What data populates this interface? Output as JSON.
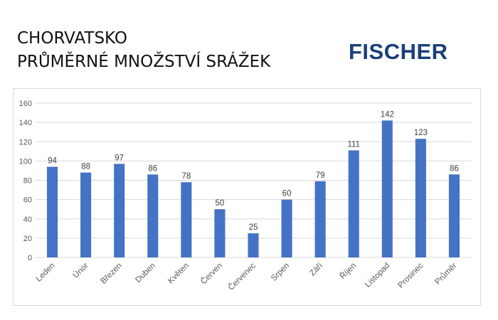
{
  "header": {
    "title_line1": "CHORVATSKO",
    "title_line2": "PRŮMĚRNÉ MNOŽSTVÍ SRÁŽEK",
    "logo_text": "FISCHER"
  },
  "colors": {
    "bar": "#4472c4",
    "logo": "#1a3f7a",
    "grid": "#d9d9d9"
  },
  "chart_data": {
    "type": "bar",
    "categories": [
      "Leden",
      "Únor",
      "Březen",
      "Duben",
      "Květen",
      "Červen",
      "Červenec",
      "Srpen",
      "Září",
      "Říjen",
      "Listopad",
      "Prosinec",
      "Průměr"
    ],
    "values": [
      94,
      88,
      97,
      86,
      78,
      50,
      25,
      60,
      79,
      111,
      142,
      123,
      86
    ],
    "title": "",
    "xlabel": "",
    "ylabel": "",
    "ylim": [
      0,
      160
    ],
    "yticks": [
      0,
      20,
      40,
      60,
      80,
      100,
      120,
      140,
      160
    ],
    "grid": true,
    "data_labels": true,
    "legend": "none"
  }
}
